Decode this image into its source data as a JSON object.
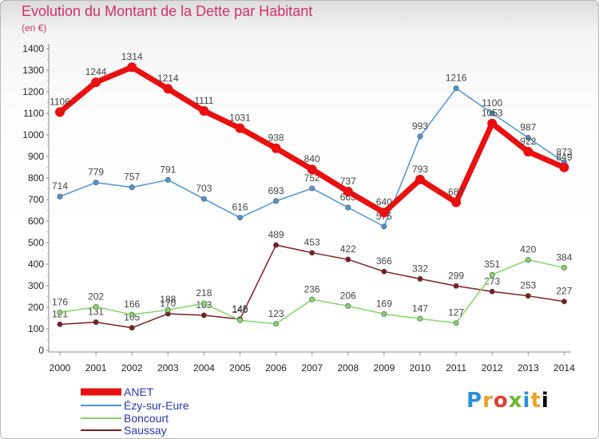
{
  "header": {
    "title": "Evolution du Montant de la Dette par Habitant",
    "subtitle": "(en €)"
  },
  "logo": {
    "text": "Proxiti",
    "letters": [
      "P",
      "r",
      "o",
      "x",
      "i",
      "t",
      "i"
    ]
  },
  "chart_data": {
    "type": "line",
    "title": "Evolution du Montant de la Dette par Habitant",
    "subtitle": "(en €)",
    "xlabel": "",
    "ylabel": "",
    "categories": [
      "2000",
      "2001",
      "2002",
      "2003",
      "2004",
      "2005",
      "2006",
      "2007",
      "2008",
      "2009",
      "2010",
      "2011",
      "2012",
      "2013",
      "2014"
    ],
    "ylim": [
      0,
      1400
    ],
    "yticks": [
      0,
      100,
      200,
      300,
      400,
      500,
      600,
      700,
      800,
      900,
      1000,
      1100,
      1200,
      1300,
      1400
    ],
    "grid": false,
    "legend_position": "bottom-left",
    "series": [
      {
        "name": "ANET",
        "color": "#e81010",
        "values": [
          1106,
          1244,
          1314,
          1214,
          1111,
          1031,
          938,
          840,
          737,
          640,
          793,
          687,
          1053,
          922,
          849
        ]
      },
      {
        "name": "Ézy-sur-Eure",
        "color": "#4f95cf",
        "values": [
          714,
          779,
          757,
          791,
          703,
          616,
          693,
          752,
          663,
          575,
          993,
          1216,
          1100,
          987,
          873
        ]
      },
      {
        "name": "Boncourt",
        "color": "#85d46a",
        "values": [
          176,
          202,
          166,
          188,
          218,
          140,
          123,
          236,
          206,
          169,
          147,
          127,
          351,
          420,
          384
        ]
      },
      {
        "name": "Saussay",
        "color": "#7a1f22",
        "values": [
          121,
          131,
          105,
          170,
          163,
          145,
          489,
          453,
          422,
          366,
          332,
          299,
          273,
          253,
          227
        ]
      }
    ]
  }
}
